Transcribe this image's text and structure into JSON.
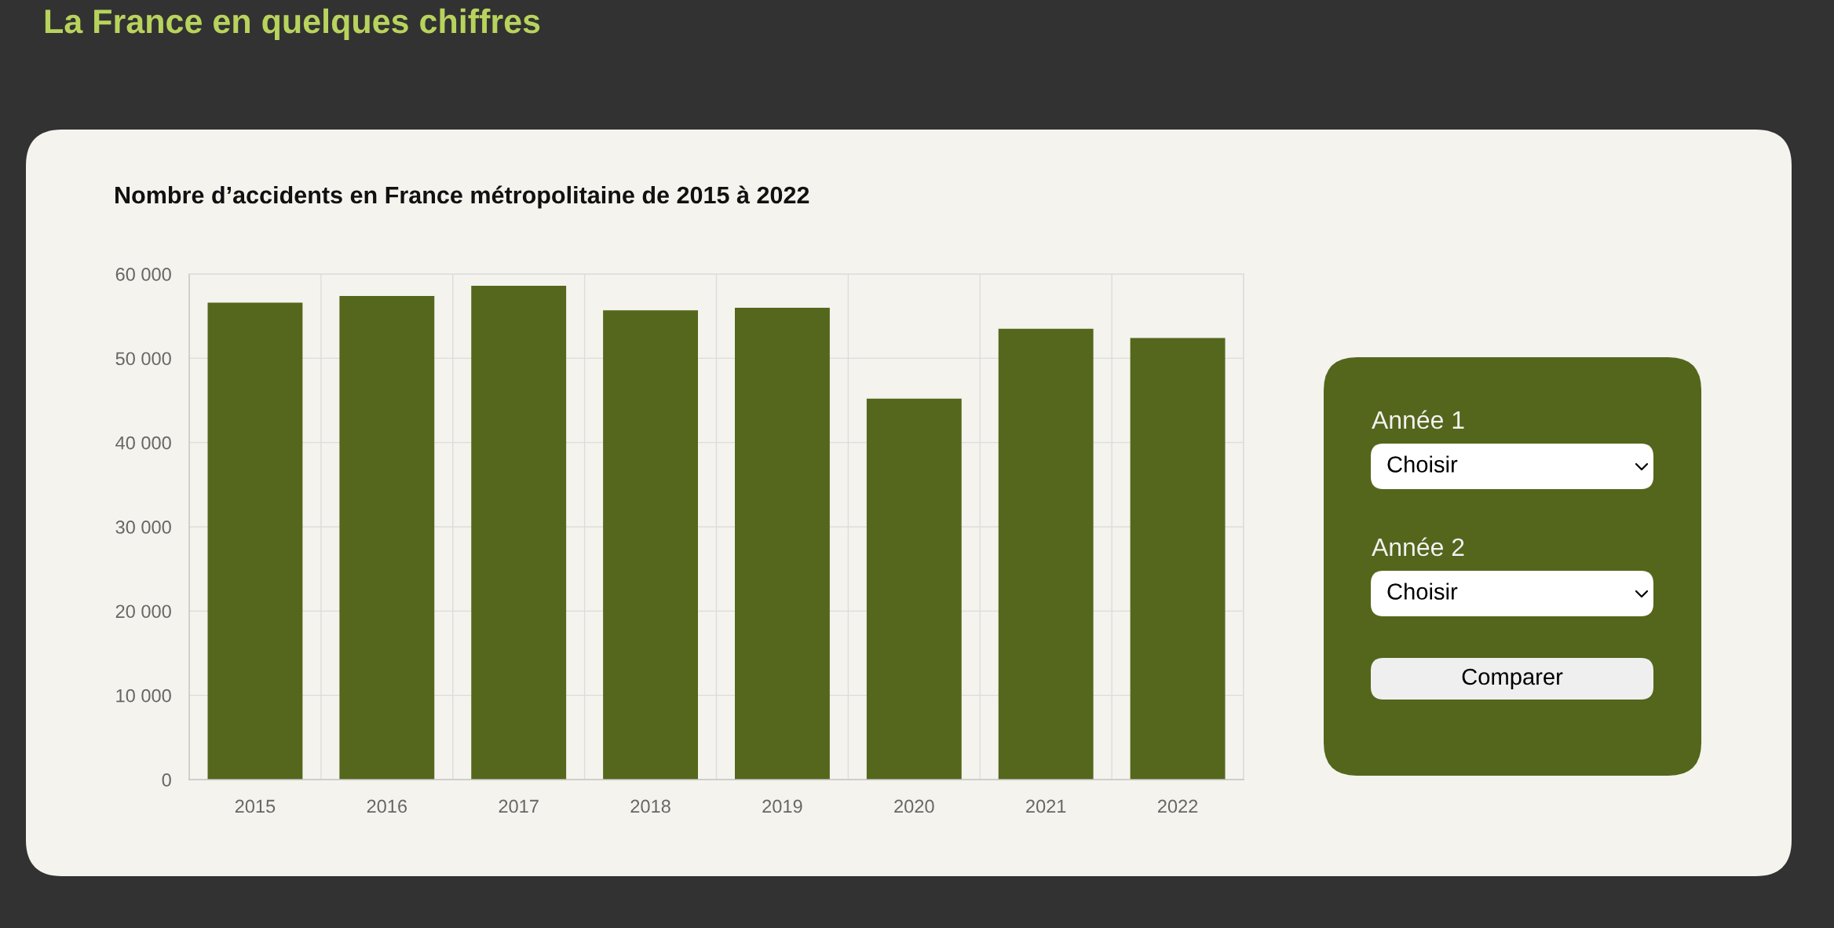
{
  "chart_data": [
    {
      "type": "bar",
      "title": "Nombre d’accidents en France métropolitaine de 2015 à 2022",
      "annotations": [
        "La France en quelques chiffres"
      ],
      "categories": [
        "2015",
        "2016",
        "2017",
        "2018",
        "2019",
        "2020",
        "2021",
        "2022"
      ],
      "values": [
        56600,
        57400,
        58600,
        55700,
        56000,
        45200,
        53500,
        52400
      ],
      "color": "#54671c",
      "ylim": [
        0,
        60000
      ],
      "yticks": [
        0,
        {
          "value": 10000,
          "label": "10 000"
        },
        {
          "value": 20000,
          "label": "20 000"
        },
        {
          "value": 30000,
          "label": "30 000"
        },
        {
          "value": 40000,
          "label": "40 000"
        },
        {
          "value": 50000,
          "label": "50 000"
        },
        {
          "value": 60000,
          "label": "60 000"
        }
      ],
      "grid": true
    },
    {
      "type": "other",
      "annotations": [
        "Année 1",
        "Choisir",
        "Année 2",
        "Choisir",
        "Comparer"
      ]
    }
  ]
}
